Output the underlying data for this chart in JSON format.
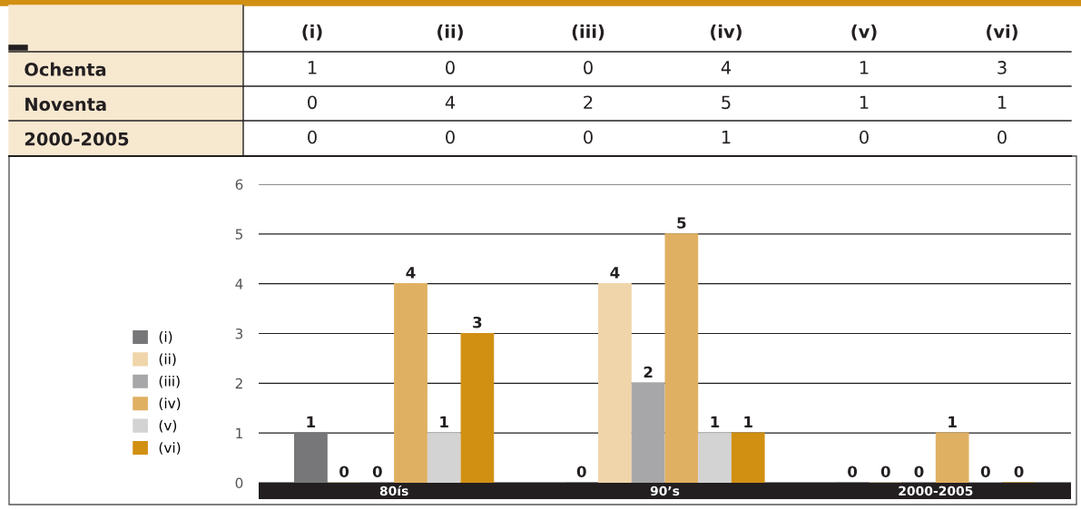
{
  "chart_data": [
    {
      "type": "heatmap",
      "categories": [
        "(i)",
        "(ii)",
        "(iii)",
        "(iv)",
        "(v)",
        "(vi)"
      ],
      "y_categories": [
        "Ochenta",
        "Noventa",
        "2000-2005"
      ],
      "cells": [
        [
          1,
          0,
          0,
          4,
          1,
          3
        ],
        [
          0,
          4,
          2,
          5,
          1,
          1
        ],
        [
          0,
          0,
          0,
          1,
          0,
          0
        ]
      ],
      "data_labels": true
    },
    {
      "type": "bar",
      "categories": [
        "80ís",
        "90’s",
        "2000-2005"
      ],
      "series": [
        {
          "name": "(i)",
          "color": "#77777a",
          "values": [
            1,
            0,
            0
          ]
        },
        {
          "name": "(ii)",
          "color": "#f0d5aa",
          "values": [
            0,
            4,
            0
          ]
        },
        {
          "name": "(iii)",
          "color": "#a7a7a9",
          "values": [
            0,
            2,
            0
          ]
        },
        {
          "name": "(iv)",
          "color": "#e0b062",
          "values": [
            4,
            5,
            1
          ]
        },
        {
          "name": "(v)",
          "color": "#d3d3d3",
          "values": [
            1,
            1,
            0
          ]
        },
        {
          "name": "(vi)",
          "color": "#d19012",
          "values": [
            3,
            1,
            0
          ]
        }
      ],
      "ylim": [
        0,
        6
      ],
      "yticks": [
        0,
        1,
        2,
        3,
        4,
        5,
        6
      ],
      "grid": "y",
      "legend": "left",
      "data_labels": true
    }
  ]
}
